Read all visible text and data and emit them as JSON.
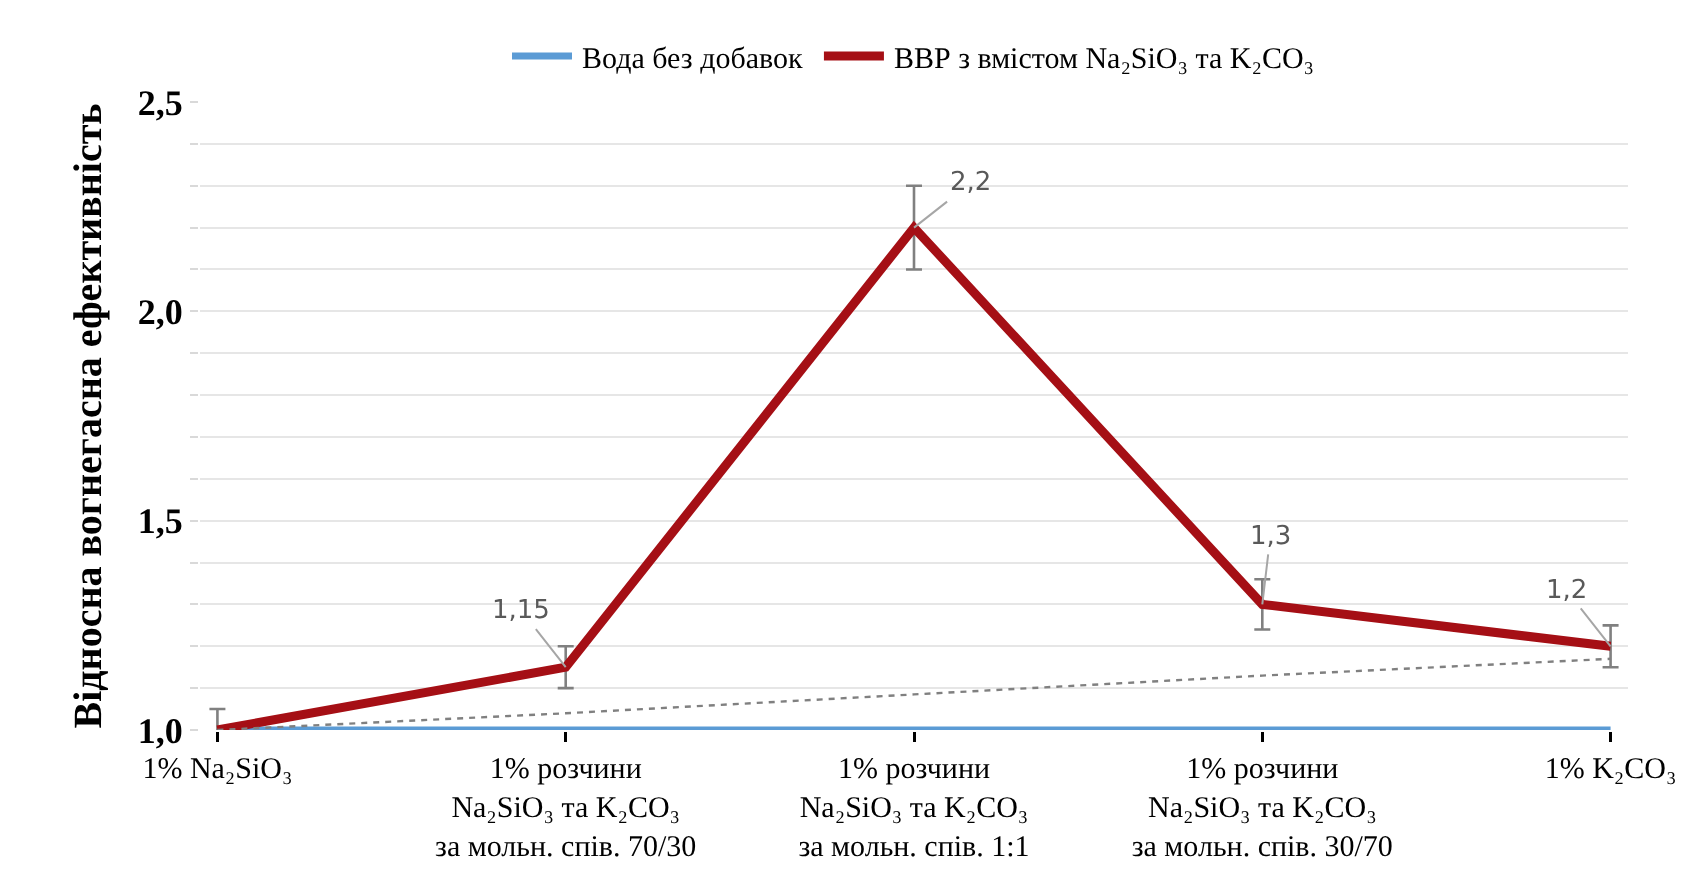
{
  "chart_data": {
    "type": "line",
    "ylabel": "Відносна вогнегасна ефективність",
    "categories": [
      "1% Na₂SiO₃",
      "1% розчини\nNa₂SiO₃ та K₂CO₃\nза мольн. спів. 70/30",
      "1% розчини\nNa₂SiO₃ та K₂CO₃\nза мольн. спів. 1:1",
      "1% розчини\nNa₂SiO₃ та K₂CO₃\nза мольн. спів. 30/70",
      "1% K₂CO₃"
    ],
    "series": [
      {
        "name": "Вода без добавок",
        "color": "#5b9bd5",
        "values": [
          1.0,
          1.0,
          1.0,
          1.0,
          1.0
        ]
      },
      {
        "name": "ВВР з вмістом Na₂SiO₃ та K₂CO₃",
        "color": "#a50f15",
        "values": [
          1.0,
          1.15,
          2.2,
          1.3,
          1.2
        ],
        "errors": [
          0.05,
          0.05,
          0.1,
          0.06,
          0.05
        ],
        "value_labels": [
          null,
          "1,15",
          "2,2",
          "1,3",
          "1,2"
        ]
      },
      {
        "type": "line",
        "color": "#808080",
        "line_style": "dotted",
        "values": [
          1.0,
          1.04,
          1.085,
          1.13,
          1.17
        ]
      }
    ],
    "ylim": [
      1.0,
      2.5
    ],
    "yticks": [
      {
        "value": 1.0,
        "label": "1,0"
      },
      {
        "value": 1.1,
        "label": null
      },
      {
        "value": 1.2,
        "label": null
      },
      {
        "value": 1.3,
        "label": null
      },
      {
        "value": 1.4,
        "label": null
      },
      {
        "value": 1.5,
        "label": "1,5"
      },
      {
        "value": 1.6,
        "label": null
      },
      {
        "value": 1.7,
        "label": null
      },
      {
        "value": 1.8,
        "label": null
      },
      {
        "value": 1.9,
        "label": null
      },
      {
        "value": 2.0,
        "label": "2,0"
      },
      {
        "value": 2.1,
        "label": null
      },
      {
        "value": 2.2,
        "label": null
      },
      {
        "value": 2.3,
        "label": null
      },
      {
        "value": 2.4,
        "label": null
      },
      {
        "value": 2.5,
        "label": "2,5"
      }
    ],
    "grid": "y",
    "legend": "top",
    "marker": "none",
    "line_style": "solid"
  }
}
